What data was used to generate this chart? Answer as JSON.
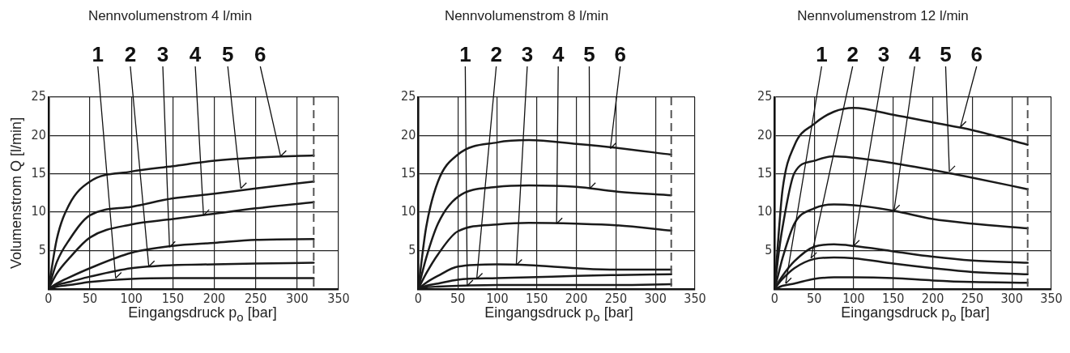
{
  "chart_data": [
    {
      "type": "line",
      "title": "Nennvolumenstrom 4 l/min",
      "xlabel": "Eingangsdruck p$_{o}$ [bar]",
      "ylabel": "Volumenstrom Q [l/min]",
      "x": [
        0,
        10,
        25,
        50,
        100,
        150,
        200,
        250,
        320
      ],
      "series": [
        {
          "color": "#1a1a1a",
          "values": [
            0,
            0.3,
            0.5,
            0.9,
            1.3,
            1.4,
            1.4,
            1.4,
            1.4
          ]
        },
        {
          "color": "#1a1a1a",
          "values": [
            0,
            0.5,
            0.9,
            1.6,
            2.7,
            3.1,
            3.2,
            3.3,
            3.4
          ]
        },
        {
          "color": "#1a1a1a",
          "values": [
            0,
            0.7,
            1.5,
            2.7,
            4.7,
            5.6,
            6,
            6.4,
            6.5
          ]
        },
        {
          "color": "#1a1a1a",
          "values": [
            0,
            2,
            4,
            6.7,
            8.4,
            9.1,
            9.8,
            10.5,
            11.3
          ]
        },
        {
          "color": "#1a1a1a",
          "values": [
            0,
            3.5,
            6.4,
            9.6,
            10.7,
            11.8,
            12.4,
            13.1,
            14
          ]
        },
        {
          "color": "#1a1a1a",
          "values": [
            0,
            6.5,
            11,
            14,
            15.3,
            16,
            16.7,
            17.1,
            17.4
          ]
        }
      ],
      "xlim": [
        0,
        350
      ],
      "xticks": [
        0,
        50,
        100,
        150,
        200,
        250,
        300,
        350
      ],
      "ylim": [
        0,
        25
      ],
      "yticks": [
        5,
        10,
        15,
        20,
        25
      ],
      "grid": true,
      "marker": "none",
      "line_style": "solid",
      "ref_lines": [
        {
          "axis": "x",
          "value": 320,
          "line_style": "dashed",
          "color": "#555555"
        }
      ],
      "annotations": [
        {
          "text": "1",
          "x": 81,
          "y": 1.4
        },
        {
          "text": "2",
          "x": 121,
          "y": 2.9
        },
        {
          "text": "3",
          "x": 146,
          "y": 5.45
        },
        {
          "text": "4",
          "x": 187,
          "y": 9.6
        },
        {
          "text": "5",
          "x": 232,
          "y": 13.1
        },
        {
          "text": "6",
          "x": 280,
          "y": 17.3
        }
      ]
    },
    {
      "type": "line",
      "title": "Nennvolumenstrom 8 l/min",
      "xlabel": "Eingangsdruck p$_{o}$ [bar]",
      "x": [
        0,
        10,
        25,
        50,
        100,
        140,
        200,
        250,
        320
      ],
      "series": [
        {
          "color": "#1a1a1a",
          "values": [
            0,
            0.2,
            0.3,
            0.4,
            0.5,
            0.5,
            0.5,
            0.5,
            0.6
          ]
        },
        {
          "color": "#1a1a1a",
          "values": [
            0,
            0.4,
            0.7,
            1.2,
            1.4,
            1.5,
            1.7,
            1.8,
            1.9
          ]
        },
        {
          "color": "#1a1a1a",
          "values": [
            0,
            0.8,
            1.7,
            2.9,
            3.2,
            3.1,
            2.7,
            2.5,
            2.5
          ]
        },
        {
          "color": "#1a1a1a",
          "values": [
            0,
            2,
            4.5,
            7.5,
            8.4,
            8.6,
            8.5,
            8.3,
            7.6
          ]
        },
        {
          "color": "#1a1a1a",
          "values": [
            0,
            4,
            8.5,
            12,
            13.3,
            13.5,
            13.3,
            12.7,
            12.2
          ]
        },
        {
          "color": "#1a1a1a",
          "values": [
            0,
            8,
            14,
            17.5,
            19.1,
            19.4,
            18.9,
            18.4,
            17.5
          ]
        }
      ],
      "xlim": [
        0,
        350
      ],
      "xticks": [
        0,
        50,
        100,
        150,
        200,
        250,
        300,
        350
      ],
      "ylim": [
        0,
        25
      ],
      "yticks": [
        5,
        10,
        15,
        20,
        25
      ],
      "grid": true,
      "marker": "none",
      "line_style": "solid",
      "ref_lines": [
        {
          "axis": "x",
          "value": 320,
          "line_style": "dashed",
          "color": "#555555"
        }
      ],
      "annotations": [
        {
          "text": "1",
          "x": 62,
          "y": 0.4
        },
        {
          "text": "2",
          "x": 74,
          "y": 1.3
        },
        {
          "text": "3",
          "x": 124,
          "y": 3.1
        },
        {
          "text": "4",
          "x": 175,
          "y": 8.5
        },
        {
          "text": "5",
          "x": 217,
          "y": 13.1
        },
        {
          "text": "6",
          "x": 243,
          "y": 18.3
        }
      ]
    },
    {
      "type": "line",
      "title": "Nennvolumenstrom 12 l/min",
      "xlabel": "Eingangsdruck p$_{o}$ [bar]",
      "x": [
        0,
        5,
        10,
        25,
        50,
        75,
        100,
        150,
        200,
        250,
        320
      ],
      "series": [
        {
          "color": "#1a1a1a",
          "values": [
            0,
            0.2,
            0.4,
            0.7,
            1.3,
            1.5,
            1.5,
            1.4,
            1.1,
            0.9,
            0.8
          ]
        },
        {
          "color": "#1a1a1a",
          "values": [
            0,
            0.7,
            1.3,
            2.7,
            3.9,
            4.1,
            4,
            3.3,
            2.7,
            2.2,
            1.9
          ]
        },
        {
          "color": "#1a1a1a",
          "values": [
            0,
            0.9,
            1.7,
            3.6,
            5.5,
            5.8,
            5.6,
            4.9,
            4.2,
            3.7,
            3.4
          ]
        },
        {
          "color": "#1a1a1a",
          "values": [
            0,
            2,
            4,
            8.5,
            10.5,
            11,
            10.9,
            10.2,
            9.1,
            8.5,
            7.9
          ]
        },
        {
          "color": "#1a1a1a",
          "values": [
            0,
            4.5,
            8,
            15.1,
            16.7,
            17.3,
            17.1,
            16.4,
            15.5,
            14.5,
            13
          ]
        },
        {
          "color": "#1a1a1a",
          "values": [
            0,
            7,
            12.9,
            18.7,
            21.5,
            23.1,
            23.6,
            22.7,
            21.7,
            20.7,
            18.8
          ]
        }
      ],
      "xlim": [
        0,
        350
      ],
      "xticks": [
        0,
        50,
        100,
        150,
        200,
        250,
        300,
        350
      ],
      "ylim": [
        0,
        25
      ],
      "yticks": [
        5,
        10,
        15,
        20,
        25
      ],
      "grid": true,
      "marker": "none",
      "line_style": "solid",
      "ref_lines": [
        {
          "axis": "x",
          "value": 320,
          "line_style": "dashed",
          "color": "#555555"
        }
      ],
      "annotations": [
        {
          "text": "1",
          "x": 14,
          "y": 0.7
        },
        {
          "text": "2",
          "x": 46,
          "y": 4
        },
        {
          "text": "3",
          "x": 100,
          "y": 5.6
        },
        {
          "text": "4",
          "x": 151,
          "y": 10.2
        },
        {
          "text": "5",
          "x": 221,
          "y": 15.3
        },
        {
          "text": "6",
          "x": 235,
          "y": 21.1
        }
      ]
    }
  ]
}
